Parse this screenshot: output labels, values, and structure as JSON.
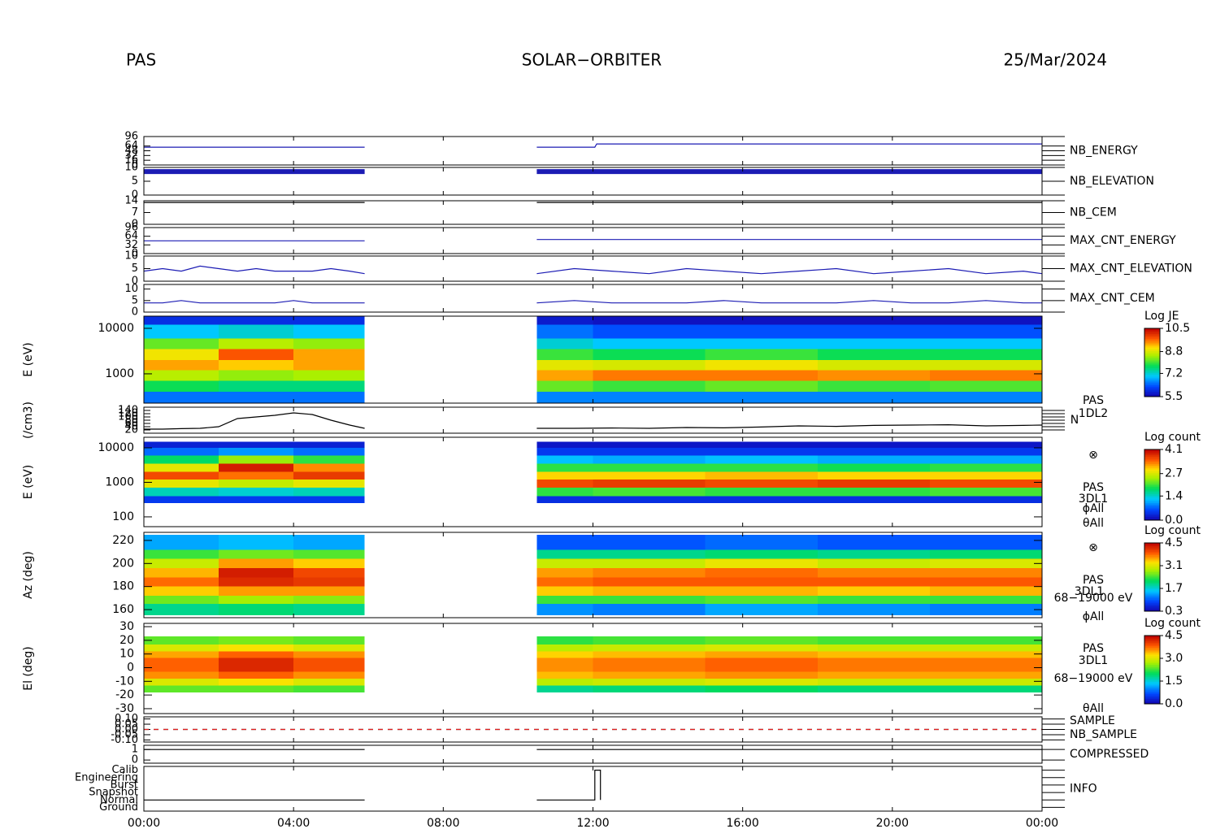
{
  "header": {
    "instrument": "PAS",
    "mission": "SOLAR−ORBITER",
    "date": "25/Mar/2024"
  },
  "time_axis": {
    "xlim": [
      0,
      24
    ],
    "xticks": [
      {
        "value": 0,
        "label": "00:00"
      },
      {
        "value": 4,
        "label": "04:00"
      },
      {
        "value": 8,
        "label": "08:00"
      },
      {
        "value": 12,
        "label": "12:00"
      },
      {
        "value": 16,
        "label": "16:00"
      },
      {
        "value": 20,
        "label": "20:00"
      },
      {
        "value": 24,
        "label": "00:00"
      }
    ]
  },
  "chart_data": [
    {
      "type": "line",
      "x": [
        0,
        5.9,
        6,
        10.5,
        12.05,
        12.1,
        24
      ],
      "series": [
        {
          "name": "NB_ENERGY",
          "color": "#1c1cb4",
          "values": [
            60,
            60,
            null,
            60,
            60,
            71,
            71
          ]
        }
      ],
      "ylim": [
        0,
        96
      ],
      "yticks": [
        0,
        16,
        32,
        48,
        64,
        96
      ]
    },
    {
      "type": "line",
      "x": [
        0,
        5.9,
        6,
        10.5,
        24
      ],
      "series": [
        {
          "name": "NB_ELEVATION",
          "color": "#1c1cb4",
          "line_width": 6,
          "values": [
            8.5,
            8.5,
            null,
            8.5,
            8.5
          ]
        }
      ],
      "ylim": [
        0,
        10
      ],
      "yticks": [
        0,
        5,
        10
      ]
    },
    {
      "type": "line",
      "x": [
        0,
        5.9,
        6,
        10.5,
        24
      ],
      "series": [
        {
          "name": "NB_CEM",
          "color": "#1c1cb4",
          "line_color": "#000000",
          "values": [
            13,
            13,
            null,
            13,
            13
          ]
        }
      ],
      "ylim": [
        0,
        14
      ],
      "yticks": [
        0,
        7,
        14
      ]
    },
    {
      "type": "line",
      "x": [
        0,
        0.5,
        1,
        1.5,
        2,
        2.5,
        3,
        3.5,
        4,
        4.5,
        5,
        5.5,
        5.9,
        6,
        10.5,
        11.5,
        12.5,
        13.5,
        14.5,
        15.5,
        16.5,
        17.5,
        18.5,
        19.5,
        20.5,
        21.5,
        22.5,
        23.5,
        24
      ],
      "series": [
        {
          "name": "MAX_CNT_ENERGY",
          "color": "#1c1cb4",
          "values": [
            47,
            47,
            47,
            47,
            47,
            47,
            47,
            47,
            47,
            47,
            47,
            47,
            47,
            null,
            52,
            52,
            52,
            52,
            52,
            52,
            52,
            52,
            52,
            52,
            52,
            52,
            52,
            52,
            52
          ]
        }
      ],
      "ylim": [
        0,
        96
      ],
      "yticks": [
        0,
        32,
        64,
        96
      ]
    },
    {
      "type": "line",
      "x": [
        0,
        0.5,
        1,
        1.5,
        2,
        2.5,
        3,
        3.5,
        4,
        4.5,
        5,
        5.5,
        5.9,
        6,
        10.5,
        11.5,
        12.5,
        13.5,
        14.5,
        15.5,
        16.5,
        17.5,
        18.5,
        19.5,
        20.5,
        21.5,
        22.5,
        23.5,
        24
      ],
      "series": [
        {
          "name": "MAX_CNT_ELEVATION",
          "color": "#1c1cb4",
          "values": [
            4,
            5,
            4,
            6,
            5,
            4,
            5,
            4,
            4,
            4,
            5,
            4,
            3,
            null,
            3,
            5,
            4,
            3,
            5,
            4,
            3,
            4,
            5,
            3,
            4,
            5,
            3,
            4,
            3
          ]
        }
      ],
      "ylim": [
        0,
        10
      ],
      "yticks": [
        0,
        5,
        10
      ]
    },
    {
      "type": "line",
      "x": [
        0,
        0.5,
        1,
        1.5,
        2,
        2.5,
        3,
        3.5,
        4,
        4.5,
        5,
        5.5,
        5.9,
        6,
        10.5,
        11.5,
        12.5,
        13.5,
        14.5,
        15.5,
        16.5,
        17.5,
        18.5,
        19.5,
        20.5,
        21.5,
        22.5,
        23.5,
        24
      ],
      "series": [
        {
          "name": "MAX_CNT_CEM",
          "color": "#1c1cb4",
          "values": [
            4,
            4,
            5,
            4,
            4,
            4,
            4,
            4,
            5,
            4,
            4,
            4,
            4,
            null,
            4,
            5,
            4,
            4,
            4,
            5,
            4,
            4,
            4,
            5,
            4,
            4,
            5,
            4,
            4
          ]
        }
      ],
      "ylim": [
        0,
        12
      ],
      "yticks": [
        0,
        5,
        10
      ]
    },
    {
      "type": "spectrogram",
      "ylabel": "E (eV)",
      "ylog": true,
      "ylim": [
        227,
        18500
      ],
      "yticks": [
        1000,
        10000
      ],
      "xbins": [
        0,
        2,
        4,
        5.9,
        10.5,
        12,
        15,
        18,
        21,
        24
      ],
      "ybins": [
        227,
        400,
        700,
        1200,
        2000,
        3500,
        6000,
        12000,
        18500
      ],
      "z": [
        [
          6.5,
          7.8,
          8.6,
          9.4,
          9.0,
          8.2,
          7.0,
          6.0
        ],
        [
          6.5,
          7.6,
          8.4,
          9.2,
          9.8,
          8.6,
          7.2,
          6.0
        ],
        [
          6.5,
          7.6,
          8.5,
          9.4,
          9.4,
          8.4,
          7.0,
          6.0
        ],
        null,
        [
          6.6,
          8.2,
          9.4,
          8.9,
          8.0,
          7.2,
          6.5,
          5.8
        ],
        [
          6.6,
          8.0,
          9.6,
          8.8,
          7.8,
          7.0,
          6.3,
          5.7
        ],
        [
          6.6,
          8.2,
          9.6,
          9.0,
          8.0,
          7.0,
          6.3,
          5.7
        ],
        [
          6.6,
          8.0,
          9.5,
          8.8,
          7.8,
          7.0,
          6.3,
          5.7
        ],
        [
          6.6,
          8.1,
          9.6,
          8.8,
          7.8,
          7.0,
          6.3,
          5.7
        ]
      ],
      "colorbar_label": "Log JE",
      "clim": [
        5.5,
        10.5
      ],
      "cticks": [
        10.5,
        8.8,
        7.2,
        5.5
      ],
      "annotations": []
    },
    {
      "type": "line",
      "ylabel": "(/cm3)",
      "x": [
        0,
        0.5,
        1,
        1.5,
        2,
        2.5,
        3,
        3.5,
        4,
        4.5,
        5,
        5.5,
        5.9,
        6,
        10.5,
        11.5,
        12.5,
        13.5,
        14.5,
        15.5,
        16.5,
        17.5,
        18.5,
        19.5,
        20.5,
        21.5,
        22.5,
        23.5,
        24
      ],
      "series": [
        {
          "color": "#000000",
          "values": [
            25,
            25,
            28,
            30,
            40,
            90,
            100,
            110,
            125,
            115,
            80,
            50,
            30,
            null,
            30,
            30,
            32,
            30,
            35,
            33,
            38,
            45,
            42,
            48,
            50,
            52,
            45,
            48,
            50
          ]
        }
      ],
      "ylim": [
        0,
        160
      ],
      "yticks": [
        20,
        40,
        60,
        80,
        100,
        120,
        140
      ],
      "annotations": [
        "PAS",
        "1DL2",
        "N"
      ]
    },
    {
      "type": "spectrogram",
      "ylabel": "E (eV)",
      "ylog": true,
      "ylim": [
        52,
        20200
      ],
      "yticks": [
        100,
        1000,
        10000
      ],
      "xbins": [
        0,
        2,
        4,
        5.9,
        10.5,
        12,
        15,
        18,
        21,
        24
      ],
      "ybins": [
        250,
        400,
        700,
        1200,
        2000,
        3500,
        6000,
        10000,
        15000
      ],
      "z": [
        [
          0.5,
          1.5,
          2.8,
          3.6,
          2.8,
          1.8,
          0.8,
          0.3
        ],
        [
          0.5,
          1.4,
          2.6,
          3.4,
          3.9,
          2.4,
          1.0,
          0.3
        ],
        [
          0.5,
          1.5,
          2.8,
          3.7,
          3.3,
          2.0,
          0.8,
          0.3
        ],
        null,
        [
          0.4,
          2.0,
          3.6,
          3.0,
          2.0,
          1.2,
          0.5,
          0.2
        ],
        [
          0.4,
          2.1,
          3.7,
          3.0,
          2.0,
          1.1,
          0.5,
          0.2
        ],
        [
          0.4,
          2.0,
          3.6,
          3.1,
          2.0,
          1.2,
          0.5,
          0.2
        ],
        [
          0.4,
          2.0,
          3.7,
          3.0,
          1.9,
          1.1,
          0.5,
          0.2
        ],
        [
          0.4,
          2.1,
          3.6,
          3.0,
          2.0,
          1.1,
          0.5,
          0.2
        ]
      ],
      "colorbar_label": "Log count",
      "clim": [
        0,
        4.1
      ],
      "cticks": [
        4.1,
        2.7,
        1.4,
        {
          "value": 0,
          "label": "0.0"
        }
      ],
      "annotations": [
        "⊗",
        "PAS",
        "3DL1",
        "ϕAll",
        "θAll"
      ]
    },
    {
      "type": "spectrogram",
      "ylabel": "Az (deg)",
      "ylim": [
        153,
        227
      ],
      "yticks": [
        160,
        180,
        200,
        220
      ],
      "xbins": [
        0,
        2,
        4,
        5.9,
        10.5,
        12,
        15,
        18,
        21,
        24
      ],
      "ybins": [
        155,
        165,
        172,
        180,
        188,
        196,
        204,
        212,
        225
      ],
      "z": [
        [
          2.0,
          2.6,
          3.4,
          3.8,
          3.5,
          3.0,
          2.4,
          1.4
        ],
        [
          2.1,
          2.8,
          3.6,
          4.2,
          4.3,
          3.6,
          2.6,
          1.5
        ],
        [
          2.0,
          2.7,
          3.6,
          4.1,
          4.0,
          3.4,
          2.5,
          1.4
        ],
        null,
        [
          1.3,
          2.4,
          3.4,
          3.8,
          3.6,
          3.0,
          2.0,
          1.0
        ],
        [
          1.2,
          2.4,
          3.5,
          3.9,
          3.7,
          3.0,
          2.0,
          1.0
        ],
        [
          1.4,
          2.5,
          3.5,
          3.9,
          3.8,
          3.2,
          2.1,
          1.1
        ],
        [
          1.3,
          2.4,
          3.4,
          3.9,
          3.7,
          3.0,
          2.0,
          1.0
        ],
        [
          1.2,
          2.4,
          3.5,
          3.9,
          3.7,
          3.1,
          2.1,
          1.0
        ]
      ],
      "colorbar_label": "Log count",
      "clim": [
        0.3,
        4.5
      ],
      "cticks": [
        4.5,
        3.1,
        1.7,
        0.3
      ],
      "annotations": [
        "⊗",
        "PAS",
        "3DL1",
        "68−19000 eV",
        "ϕAll"
      ]
    },
    {
      "type": "spectrogram",
      "ylabel": "El (deg)",
      "ylim": [
        -33.6,
        32.4
      ],
      "yticks": [
        -30,
        -20,
        -10,
        0,
        10,
        20,
        30
      ],
      "xbins": [
        0,
        2,
        4,
        5.9,
        10.5,
        12,
        15,
        18,
        21,
        24
      ],
      "ybins": [
        -18,
        -13,
        -8,
        -3,
        2,
        7,
        12,
        17,
        23
      ],
      "z": [
        [
          2.4,
          3.0,
          3.6,
          3.8,
          3.8,
          3.5,
          3.0,
          2.4
        ],
        [
          2.4,
          3.2,
          3.8,
          4.2,
          4.2,
          3.8,
          3.2,
          2.5
        ],
        [
          2.3,
          3.0,
          3.6,
          3.9,
          3.9,
          3.6,
          3.0,
          2.4
        ],
        null,
        [
          1.8,
          2.8,
          3.4,
          3.6,
          3.6,
          3.3,
          2.8,
          2.2
        ],
        [
          1.9,
          2.9,
          3.5,
          3.7,
          3.7,
          3.4,
          2.9,
          2.3
        ],
        [
          2.0,
          3.0,
          3.6,
          3.8,
          3.8,
          3.5,
          3.0,
          2.4
        ],
        [
          1.9,
          2.9,
          3.5,
          3.7,
          3.7,
          3.4,
          2.9,
          2.3
        ],
        [
          1.9,
          2.9,
          3.5,
          3.7,
          3.7,
          3.4,
          2.9,
          2.3
        ]
      ],
      "colorbar_label": "Log count",
      "clim": [
        0,
        4.5
      ],
      "cticks": [
        4.5,
        {
          "value": 3,
          "label": "3.0"
        },
        1.5,
        {
          "value": 0,
          "label": "0.0"
        }
      ],
      "annotations": [
        "PAS",
        "3DL1",
        "68−19000 eV",
        "θAll"
      ]
    },
    {
      "type": "line",
      "x": [
        0,
        24
      ],
      "series": [
        {
          "name": "SAMPLE",
          "color": "#1c1cb4",
          "line_color": "#000000",
          "dashed": true,
          "values": [
            0,
            0
          ]
        },
        {
          "name": "NB_SAMPLE",
          "color": "#e02020",
          "dashed": true,
          "values": [
            0,
            0
          ]
        }
      ],
      "ylim": [
        -0.12,
        0.12
      ],
      "yticks": [
        {
          "value": -0.1,
          "label": "-0.10"
        },
        {
          "value": -0.05,
          "label": "-0.05"
        },
        {
          "value": 0,
          "label": "0.00"
        },
        {
          "value": 0.05,
          "label": "0.05"
        },
        {
          "value": 0.1,
          "label": "0.10"
        }
      ]
    },
    {
      "type": "line",
      "x": [
        0,
        5.9,
        6,
        10.5,
        24
      ],
      "series": [
        {
          "name": "COMPRESSED",
          "color": "#1c1cb4",
          "line_color": "#000000",
          "values": [
            1,
            1,
            null,
            1,
            1
          ]
        }
      ],
      "ylim": [
        -0.3,
        1.4
      ],
      "yticks": [
        0,
        1
      ]
    },
    {
      "type": "category_line",
      "x": [
        0,
        5.9,
        6,
        10.5,
        12.05,
        12.05,
        12.2,
        12.2
      ],
      "categories": [
        "Ground",
        "Normal",
        "Snapshot",
        "Burst",
        "Engineering",
        "Calib"
      ],
      "series": [
        {
          "name": "INFO",
          "color": "#1c1cb4",
          "line_color": "#000000",
          "values": [
            1,
            1,
            null,
            1,
            1,
            5,
            5,
            1
          ]
        }
      ],
      "ylim": [
        -0.5,
        5.5
      ]
    }
  ]
}
